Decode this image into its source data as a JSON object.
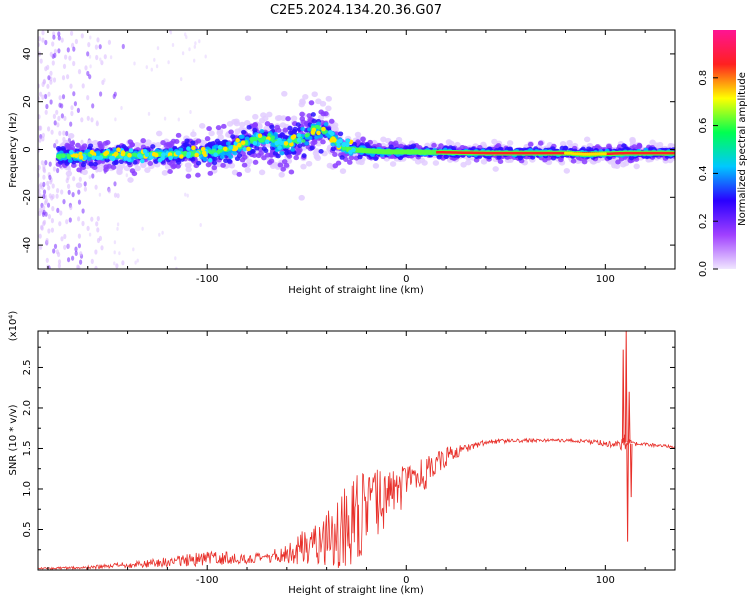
{
  "title": "C2E5.2024.134.20.36.G07",
  "chart_data": [
    {
      "type": "heatmap",
      "title": "C2E5.2024.134.20.36.G07",
      "xlabel": "Height of straight line (km)",
      "ylabel": "Frequency (Hz)",
      "xlim": [
        -185,
        135
      ],
      "ylim": [
        -50,
        50
      ],
      "x_ticks": [
        -100,
        0,
        100
      ],
      "y_ticks": [
        -40,
        -20,
        0,
        20,
        40
      ],
      "x_tick_labels": [
        "-100",
        "0",
        "100"
      ],
      "y_tick_labels": [
        "-40",
        "-20",
        "0",
        "20",
        "40"
      ],
      "colorbar": {
        "label": "Normalized spectral amplitude",
        "range": [
          0,
          1
        ],
        "ticks": [
          0.0,
          0.2,
          0.4,
          0.6,
          0.8
        ],
        "tick_labels": [
          "0.0",
          "0.2",
          "0.4",
          "0.6",
          "0.8"
        ],
        "colors": [
          "#f0e6ff",
          "#a040ff",
          "#2a00ff",
          "#00c8ff",
          "#00ff50",
          "#ffff00",
          "#ff2020",
          "#ff1493"
        ]
      },
      "ridge": {
        "x": [
          -175,
          -160,
          -140,
          -120,
          -100,
          -90,
          -80,
          -70,
          -60,
          -50,
          -45,
          -40,
          -35,
          -30,
          -20,
          -10,
          0,
          20,
          40,
          60,
          80,
          90,
          100,
          110,
          120,
          135
        ],
        "y": [
          -3,
          -2.5,
          -2.5,
          -2,
          -1.5,
          0,
          3,
          5,
          2,
          6,
          9,
          7,
          3,
          0,
          -0.5,
          -1,
          -1,
          -1.2,
          -1.5,
          -1.5,
          -1.5,
          -2,
          -1.8,
          -1.5,
          -1.5,
          -1.5
        ],
        "spread": [
          4,
          4,
          4,
          4,
          5,
          6,
          7,
          7,
          7,
          8,
          9,
          8,
          6,
          4,
          3,
          2.5,
          2.5,
          2,
          2,
          2,
          2.5,
          2.5,
          2,
          3,
          2,
          2
        ]
      }
    },
    {
      "type": "line",
      "xlabel": "Height of straight line (km)",
      "ylabel": "SNR (10 * v/v)",
      "y_multiplier_label": "(x10⁴)",
      "xlim": [
        -185,
        135
      ],
      "ylim": [
        0,
        2.95
      ],
      "x_ticks": [
        -100,
        0,
        100
      ],
      "y_ticks": [
        0.5,
        1.0,
        1.5,
        2.0,
        2.5
      ],
      "x_tick_labels": [
        "-100",
        "0",
        "100"
      ],
      "y_tick_labels": [
        "0.5",
        "1.0",
        "1.5",
        "2.0",
        "2.5"
      ],
      "color": "#e8302a",
      "envelope": {
        "x": [
          -185,
          -160,
          -140,
          -120,
          -100,
          -90,
          -80,
          -70,
          -60,
          -50,
          -40,
          -35,
          -30,
          -25,
          -20,
          -15,
          -10,
          0,
          10,
          20,
          30,
          40,
          60,
          80,
          95,
          105,
          108,
          110,
          112,
          115,
          120,
          135
        ],
        "base": [
          0.02,
          0.03,
          0.06,
          0.1,
          0.14,
          0.15,
          0.13,
          0.15,
          0.2,
          0.3,
          0.4,
          0.45,
          0.55,
          0.6,
          0.7,
          0.8,
          0.9,
          1.05,
          1.2,
          1.4,
          1.5,
          1.58,
          1.6,
          1.6,
          1.58,
          1.55,
          1.55,
          1.58,
          1.56,
          1.55,
          1.55,
          1.52
        ],
        "noise": [
          0.01,
          0.02,
          0.04,
          0.06,
          0.09,
          0.08,
          0.06,
          0.07,
          0.12,
          0.25,
          0.35,
          0.45,
          0.55,
          0.6,
          0.55,
          0.45,
          0.35,
          0.25,
          0.2,
          0.12,
          0.05,
          0.03,
          0.02,
          0.02,
          0.03,
          0.05,
          0.08,
          0.1,
          0.05,
          0.03,
          0.02,
          0.02
        ]
      },
      "spikes": [
        {
          "x": 109,
          "y": 2.72
        },
        {
          "x": 110.5,
          "y": 2.95
        },
        {
          "x": 111.2,
          "y": 0.35
        },
        {
          "x": 112,
          "y": 2.2
        },
        {
          "x": 113,
          "y": 0.9
        }
      ]
    }
  ]
}
